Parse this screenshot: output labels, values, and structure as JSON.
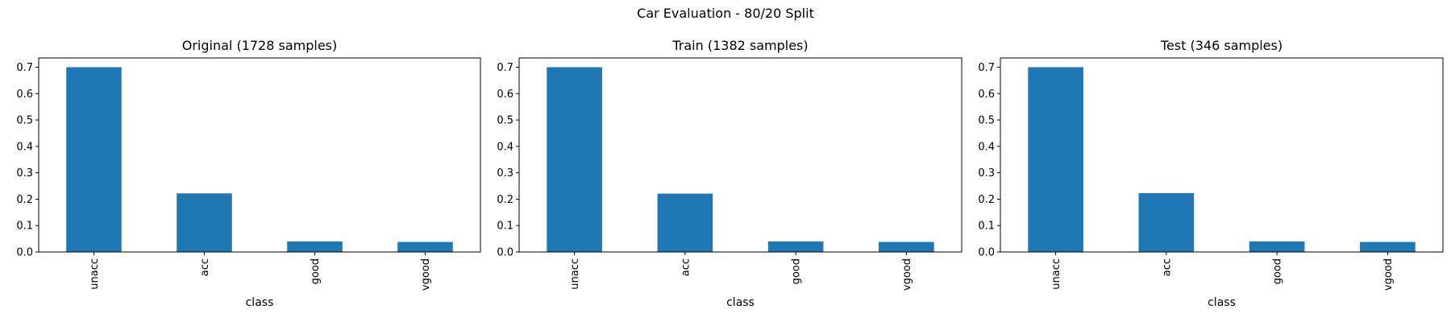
{
  "figure": {
    "suptitle": "Car Evaluation - 80/20 Split"
  },
  "chart_data": [
    {
      "type": "bar",
      "title": "Original (1728 samples)",
      "xlabel": "class",
      "ylabel": "",
      "categories": [
        "unacc",
        "acc",
        "good",
        "vgood"
      ],
      "values": [
        0.7,
        0.222,
        0.04,
        0.038
      ],
      "ylim": [
        0,
        0.735
      ],
      "yticks": [
        "0.0",
        "0.1",
        "0.2",
        "0.3",
        "0.4",
        "0.5",
        "0.6",
        "0.7"
      ],
      "bar_color": "#1f77b4",
      "grid": false,
      "legend": "none"
    },
    {
      "type": "bar",
      "title": "Train (1382 samples)",
      "xlabel": "class",
      "ylabel": "",
      "categories": [
        "unacc",
        "acc",
        "good",
        "vgood"
      ],
      "values": [
        0.7,
        0.221,
        0.04,
        0.038
      ],
      "ylim": [
        0,
        0.735
      ],
      "yticks": [
        "0.0",
        "0.1",
        "0.2",
        "0.3",
        "0.4",
        "0.5",
        "0.6",
        "0.7"
      ],
      "bar_color": "#1f77b4",
      "grid": false,
      "legend": "none"
    },
    {
      "type": "bar",
      "title": "Test (346 samples)",
      "xlabel": "class",
      "ylabel": "",
      "categories": [
        "unacc",
        "acc",
        "good",
        "vgood"
      ],
      "values": [
        0.7,
        0.223,
        0.04,
        0.038
      ],
      "ylim": [
        0,
        0.735
      ],
      "yticks": [
        "0.0",
        "0.1",
        "0.2",
        "0.3",
        "0.4",
        "0.5",
        "0.6",
        "0.7"
      ],
      "bar_color": "#1f77b4",
      "grid": false,
      "legend": "none"
    }
  ]
}
